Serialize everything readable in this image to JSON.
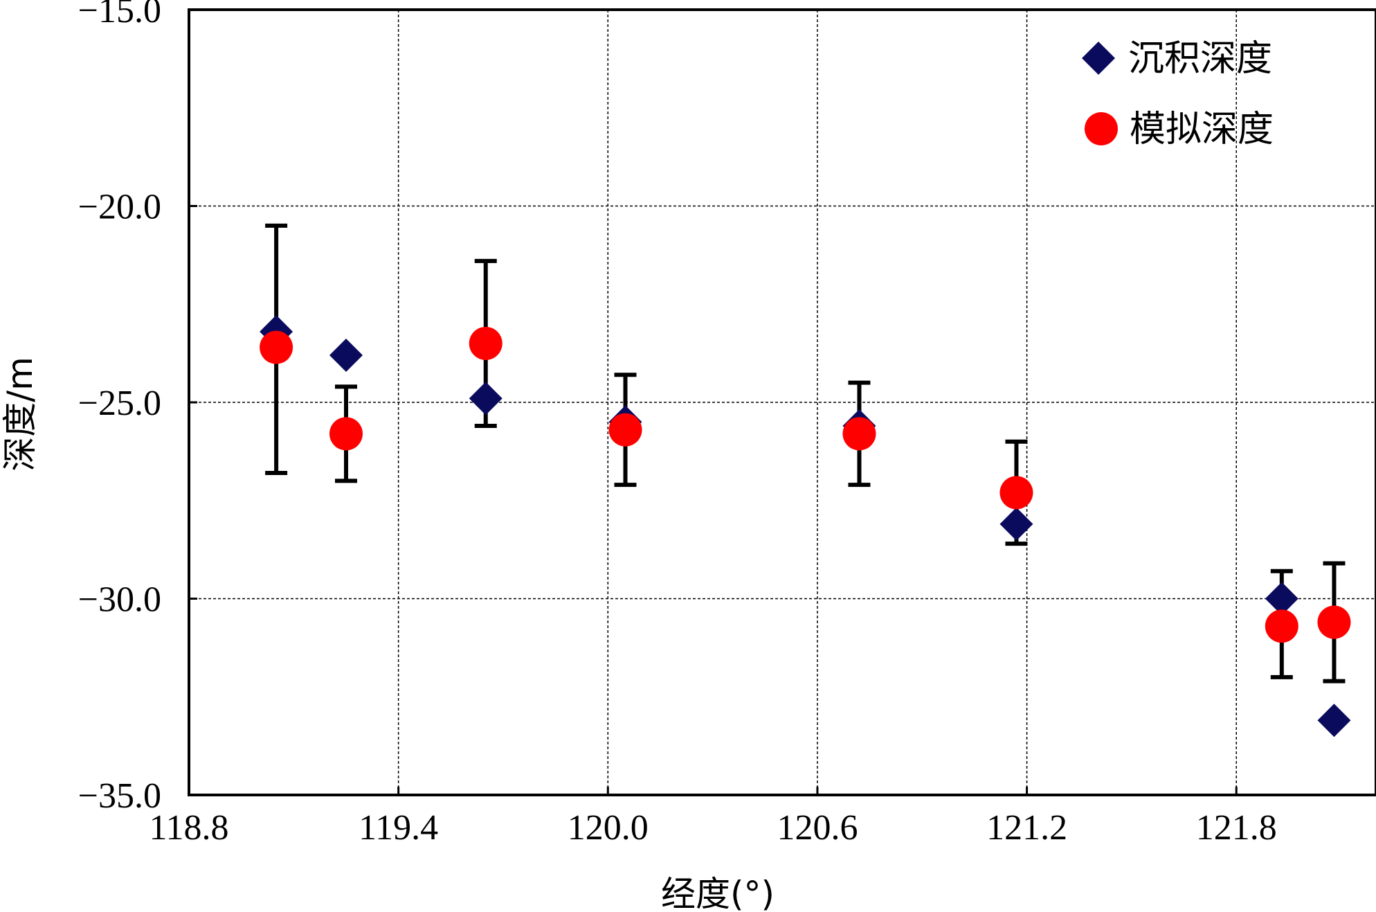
{
  "chart_data": {
    "type": "scatter",
    "xlabel": "经度(°)",
    "ylabel": "深度/m",
    "xlim": [
      118.8,
      122.2
    ],
    "ylim": [
      -35.0,
      -15.0
    ],
    "x_ticks": [
      118.8,
      119.4,
      120.0,
      120.6,
      121.2,
      121.8
    ],
    "x_tick_labels": [
      "118.8",
      "119.4",
      "120.0",
      "120.6",
      "121.2",
      "121.8"
    ],
    "y_ticks": [
      -15.0,
      -20.0,
      -25.0,
      -30.0,
      -35.0
    ],
    "y_tick_labels": [
      "−15.0",
      "−20.0",
      "−25.0",
      "−30.0",
      "−35.0"
    ],
    "grid": true,
    "legend_position": "top-right",
    "series": [
      {
        "name": "沉积深度",
        "marker": "diamond",
        "color": "#0b0b5e",
        "points": [
          {
            "x": 119.05,
            "y": -23.2
          },
          {
            "x": 119.25,
            "y": -23.8
          },
          {
            "x": 119.65,
            "y": -24.9
          },
          {
            "x": 120.05,
            "y": -25.5
          },
          {
            "x": 120.72,
            "y": -25.6
          },
          {
            "x": 121.17,
            "y": -28.1
          },
          {
            "x": 121.93,
            "y": -30.0
          },
          {
            "x": 122.08,
            "y": -33.1
          }
        ]
      },
      {
        "name": "模拟深度",
        "marker": "circle",
        "color": "#ff0000",
        "points": [
          {
            "x": 119.05,
            "y": -23.6,
            "err_low": -26.8,
            "err_high": -20.5
          },
          {
            "x": 119.25,
            "y": -25.8,
            "err_low": -27.0,
            "err_high": -24.6
          },
          {
            "x": 119.65,
            "y": -23.5,
            "err_low": -25.6,
            "err_high": -21.4
          },
          {
            "x": 120.05,
            "y": -25.7,
            "err_low": -27.1,
            "err_high": -24.3
          },
          {
            "x": 120.72,
            "y": -25.8,
            "err_low": -27.1,
            "err_high": -24.5
          },
          {
            "x": 121.17,
            "y": -27.3,
            "err_low": -28.6,
            "err_high": -26.0
          },
          {
            "x": 121.93,
            "y": -30.7,
            "err_low": -32.0,
            "err_high": -29.3
          },
          {
            "x": 122.08,
            "y": -30.6,
            "err_low": -32.1,
            "err_high": -29.1
          }
        ]
      }
    ],
    "errorbar_color": "#000000"
  }
}
